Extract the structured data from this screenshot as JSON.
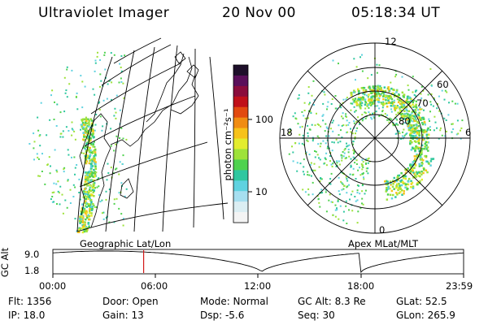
{
  "header": {
    "instrument": "Ultraviolet Imager",
    "date": "20 Nov 00",
    "time": "05:18:34 UT"
  },
  "colorbar": {
    "unit_label": "photon cm⁻²s⁻¹",
    "ticks": [
      "100",
      "10"
    ],
    "colors": [
      "#f4f4f4",
      "#dbeef3",
      "#a6dff0",
      "#5fd2e0",
      "#2fc7a0",
      "#4fd24f",
      "#9ee23a",
      "#e3ec2e",
      "#f7c21a",
      "#f08c12",
      "#e24a10",
      "#c0101a",
      "#8a0c3c",
      "#5a0f5a",
      "#1e0f2a"
    ]
  },
  "panels": {
    "geographic": {
      "title": "Geographic Lat/Lon"
    },
    "apex": {
      "title": "Apex MLat/MLT",
      "lat_labels": [
        "60",
        "70",
        "80"
      ],
      "mlt_labels": {
        "top": "12",
        "left": "18",
        "right": "6",
        "bottom": "0"
      }
    }
  },
  "orbit_plot": {
    "ylabel": "GC Alt",
    "ytick_top": "9.0",
    "ytick_bottom": "1.8",
    "xticks": [
      "00:00",
      "06:00",
      "12:00",
      "18:00",
      "23:59"
    ],
    "marker_time_fraction": 0.221
  },
  "info": {
    "flt": "Flt: 1356",
    "ip": "IP: 18.0",
    "door": "Door: Open",
    "gain": "Gain: 13",
    "mode": "Mode: Normal",
    "dsp": "Dsp:    -5.6",
    "gc_alt": "GC Alt: 8.3 Re",
    "seq": "Seq: 30",
    "glat": "GLat:  52.5",
    "glon": "GLon: 265.9"
  }
}
